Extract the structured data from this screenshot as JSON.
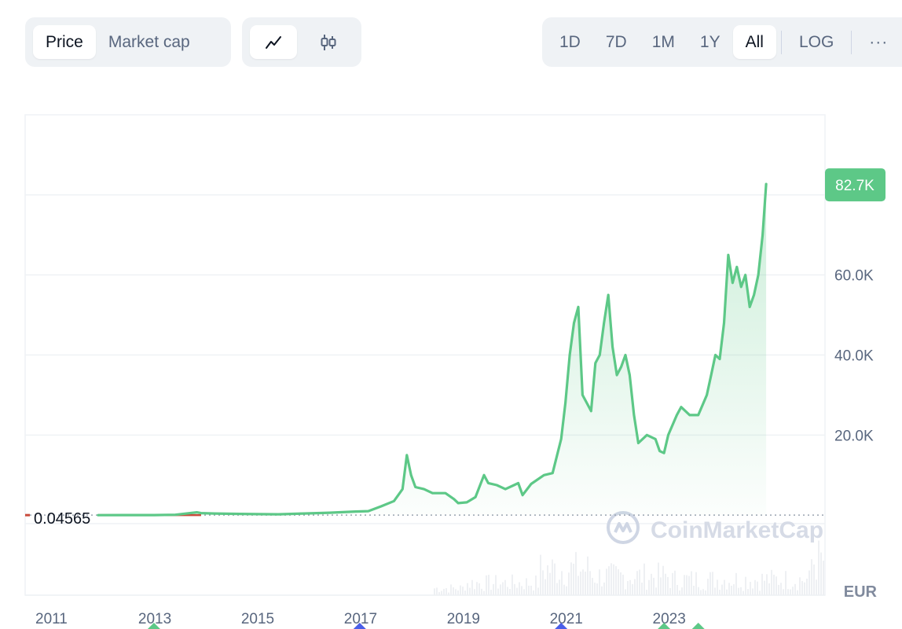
{
  "toolbar": {
    "metric_tabs": [
      {
        "label": "Price",
        "active": true
      },
      {
        "label": "Market cap",
        "active": false
      }
    ],
    "chart_type": [
      {
        "icon": "line-chart-icon",
        "active": true
      },
      {
        "icon": "candlestick-icon",
        "active": false
      }
    ],
    "ranges": [
      {
        "label": "1D",
        "active": false
      },
      {
        "label": "7D",
        "active": false
      },
      {
        "label": "1M",
        "active": false
      },
      {
        "label": "1Y",
        "active": false
      },
      {
        "label": "All",
        "active": true
      }
    ],
    "log_label": "LOG",
    "more_label": "···"
  },
  "watermark": "CoinMarketCap",
  "currency": "EUR",
  "colors": {
    "line": "#5dc887",
    "baseline": "#c94a3a",
    "badge": "#5dc887",
    "grid": "#eff2f5",
    "axis_text": "#58667e",
    "event_green": "#5dc887",
    "event_blue": "#4a5ee8"
  },
  "chart_data": {
    "type": "line",
    "title": "",
    "xlabel": "",
    "ylabel": "",
    "x_ticks": [
      "2011",
      "2013",
      "2015",
      "2017",
      "2019",
      "2021",
      "2023"
    ],
    "y_ticks": [
      "20.0K",
      "40.0K",
      "60.0K"
    ],
    "ylim": [
      -20000,
      100000
    ],
    "start_price_label": "0.04565",
    "current_price_label": "82.7K",
    "grid": true,
    "series": [
      {
        "x": [
          "2011-12",
          "2012-06",
          "2013-01",
          "2013-06",
          "2013-11",
          "2013-12",
          "2014-03",
          "2014-09",
          "2015-01",
          "2015-06",
          "2015-12",
          "2016-06",
          "2016-12",
          "2017-03",
          "2017-06",
          "2017-09",
          "2017-11",
          "2017-12",
          "2018-01",
          "2018-02",
          "2018-04",
          "2018-06",
          "2018-09",
          "2018-11",
          "2018-12",
          "2019-02",
          "2019-04",
          "2019-06",
          "2019-07",
          "2019-09",
          "2019-11",
          "2020-01",
          "2020-02",
          "2020-03",
          "2020-05",
          "2020-08",
          "2020-10",
          "2020-12",
          "2021-01",
          "2021-02",
          "2021-03",
          "2021-04",
          "2021-05",
          "2021-06",
          "2021-07",
          "2021-08",
          "2021-09",
          "2021-10",
          "2021-11",
          "2021-12",
          "2022-01",
          "2022-02",
          "2022-03",
          "2022-04",
          "2022-05",
          "2022-06",
          "2022-08",
          "2022-10",
          "2022-11",
          "2022-12",
          "2023-01",
          "2023-03",
          "2023-04",
          "2023-06",
          "2023-08",
          "2023-10",
          "2023-11",
          "2023-12",
          "2024-01",
          "2024-02",
          "2024-03",
          "2024-04",
          "2024-05",
          "2024-06",
          "2024-07",
          "2024-08",
          "2024-09",
          "2024-10",
          "2024-11",
          "2024-11-end"
        ],
        "values": [
          0.04565,
          5,
          10,
          100,
          700,
          500,
          400,
          300,
          250,
          200,
          400,
          600,
          900,
          1000,
          2200,
          3500,
          6500,
          15000,
          10000,
          7000,
          6500,
          5500,
          5500,
          4000,
          3000,
          3200,
          4500,
          10000,
          8000,
          7500,
          6500,
          7500,
          8000,
          5000,
          7800,
          10000,
          10500,
          19000,
          28000,
          40000,
          48000,
          52000,
          30000,
          28000,
          26000,
          38000,
          40000,
          48000,
          55000,
          42000,
          35000,
          37000,
          40000,
          35000,
          25000,
          18000,
          20000,
          19000,
          16000,
          15500,
          20000,
          25000,
          27000,
          25000,
          25000,
          30000,
          35000,
          40000,
          39000,
          48000,
          65000,
          58000,
          62000,
          57000,
          60000,
          52000,
          55000,
          60000,
          70000,
          82700
        ]
      }
    ],
    "event_markers": [
      {
        "x": "2013",
        "color": "green"
      },
      {
        "x": "2017",
        "color": "blue"
      },
      {
        "x": "2020-12",
        "color": "blue"
      },
      {
        "x": "2022-12",
        "color": "green"
      },
      {
        "x": "2023-08",
        "color": "green"
      }
    ]
  }
}
